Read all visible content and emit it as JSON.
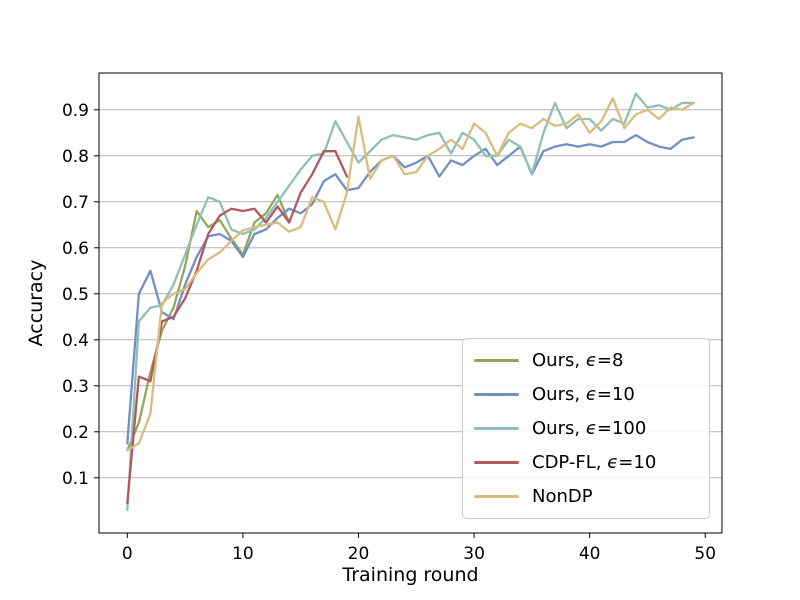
{
  "chart_data": {
    "type": "line",
    "title": "",
    "xlabel": "Training round",
    "ylabel": "Accuracy",
    "xlim": [
      -2.45,
      51.45
    ],
    "ylim": [
      -0.02,
      0.98
    ],
    "xticks": [
      0,
      10,
      20,
      30,
      40,
      50
    ],
    "yticks": [
      0.1,
      0.2,
      0.3,
      0.4,
      0.5,
      0.6,
      0.7,
      0.8,
      0.9
    ],
    "grid": "horizontal",
    "grid_color": "#b5b5b5",
    "spine_color": "#000000",
    "legend_position": "lower-right-inside",
    "x_step": 1,
    "series": [
      {
        "name": "Ours, ϵ=8",
        "color": "#94a65a",
        "x_start": 0,
        "values": [
          0.16,
          0.22,
          0.33,
          0.42,
          0.47,
          0.56,
          0.68,
          0.645,
          0.66,
          0.62,
          0.585,
          0.655,
          0.675,
          0.715,
          0.655
        ]
      },
      {
        "name": "Ours, ϵ=10",
        "color": "#7290c1",
        "x_start": 0,
        "values": [
          0.175,
          0.5,
          0.55,
          0.46,
          0.445,
          0.52,
          0.58,
          0.625,
          0.63,
          0.615,
          0.58,
          0.63,
          0.64,
          0.665,
          0.685,
          0.675,
          0.695,
          0.745,
          0.76,
          0.725,
          0.73,
          0.765,
          0.79,
          0.8,
          0.775,
          0.785,
          0.8,
          0.755,
          0.79,
          0.78,
          0.8,
          0.815,
          0.78,
          0.8,
          0.82,
          0.76,
          0.81,
          0.82,
          0.825,
          0.82,
          0.825,
          0.82,
          0.83,
          0.83,
          0.845,
          0.83,
          0.82,
          0.815,
          0.835,
          0.84
        ]
      },
      {
        "name": "Ours, ϵ=100",
        "color": "#8fbfb6",
        "x_start": 0,
        "values": [
          0.03,
          0.44,
          0.47,
          0.475,
          0.52,
          0.585,
          0.65,
          0.71,
          0.7,
          0.64,
          0.63,
          0.64,
          0.665,
          0.7,
          0.735,
          0.77,
          0.8,
          0.805,
          0.875,
          0.83,
          0.785,
          0.81,
          0.835,
          0.845,
          0.84,
          0.835,
          0.845,
          0.85,
          0.805,
          0.85,
          0.835,
          0.8,
          0.8,
          0.835,
          0.82,
          0.76,
          0.85,
          0.915,
          0.86,
          0.88,
          0.88,
          0.855,
          0.88,
          0.87,
          0.935,
          0.905,
          0.91,
          0.9,
          0.915,
          0.915
        ]
      },
      {
        "name": "CDP-FL, ϵ=10",
        "color": "#b2595f",
        "x_start": 0,
        "values": [
          0.045,
          0.32,
          0.31,
          0.44,
          0.45,
          0.49,
          0.55,
          0.63,
          0.67,
          0.685,
          0.68,
          0.685,
          0.655,
          0.69,
          0.655,
          0.72,
          0.76,
          0.81,
          0.81,
          0.755
        ]
      },
      {
        "name": "NonDP",
        "color": "#d9bc7e",
        "x_start": 0,
        "values": [
          0.16,
          0.175,
          0.24,
          0.48,
          0.5,
          0.51,
          0.545,
          0.575,
          0.59,
          0.615,
          0.638,
          0.645,
          0.65,
          0.655,
          0.635,
          0.645,
          0.71,
          0.7,
          0.64,
          0.72,
          0.885,
          0.75,
          0.79,
          0.8,
          0.76,
          0.765,
          0.8,
          0.815,
          0.835,
          0.815,
          0.87,
          0.85,
          0.8,
          0.85,
          0.87,
          0.86,
          0.88,
          0.865,
          0.87,
          0.89,
          0.85,
          0.875,
          0.925,
          0.86,
          0.89,
          0.9,
          0.88,
          0.905,
          0.9,
          0.915
        ]
      }
    ]
  }
}
